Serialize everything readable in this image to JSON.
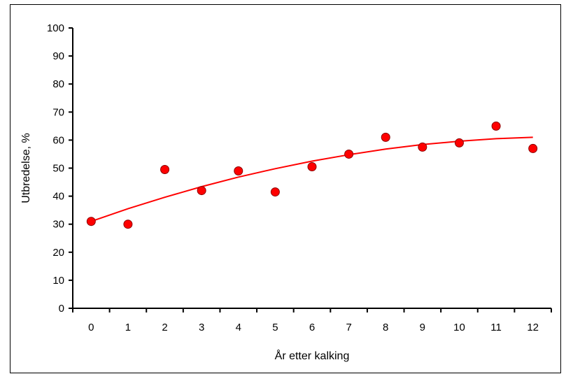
{
  "chart_data": {
    "type": "scatter",
    "title": "",
    "xlabel": "År etter kalking",
    "ylabel": "Utbredelse, %",
    "xlim": [
      0,
      12
    ],
    "ylim": [
      0,
      100
    ],
    "x_ticks": [
      "0",
      "1",
      "2",
      "3",
      "4",
      "5",
      "6",
      "7",
      "8",
      "9",
      "10",
      "11",
      "12"
    ],
    "y_ticks": [
      "0",
      "10",
      "20",
      "30",
      "40",
      "50",
      "60",
      "70",
      "80",
      "90",
      "100"
    ],
    "grid": false,
    "legend": "none",
    "series": [
      {
        "x": [
          0,
          1,
          2,
          3,
          4,
          5,
          6,
          7,
          8,
          9,
          10,
          11,
          12
        ],
        "y": [
          31,
          30,
          49.5,
          42,
          49,
          41.5,
          50.5,
          55,
          61,
          57.5,
          59,
          65,
          57
        ],
        "color": "#ff0000"
      }
    ],
    "trendline": {
      "type": "polynomial",
      "x": [
        0,
        1,
        2,
        3,
        4,
        5,
        6,
        7,
        8,
        9,
        10,
        11,
        12
      ],
      "y": [
        31,
        35.5,
        39.6,
        43.4,
        46.8,
        49.8,
        52.5,
        54.8,
        56.8,
        58.4,
        59.6,
        60.5,
        61
      ],
      "color": "#ff0000"
    }
  }
}
